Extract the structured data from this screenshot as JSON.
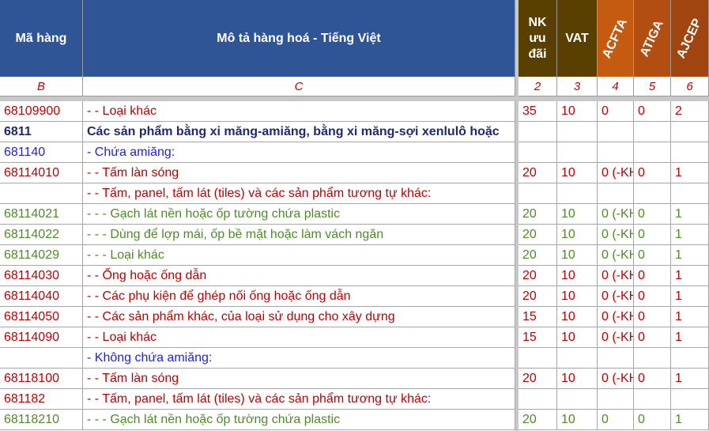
{
  "header": {
    "col_b": "Mã hàng",
    "col_c": "Mô tả hàng hoá - Tiếng Việt",
    "nk": "NK ưu đãi",
    "vat": "VAT",
    "acfta": "ACFTA",
    "atiga": "ATIGA",
    "ajcep": "AJCEP"
  },
  "letters": {
    "b": "B",
    "c": "C",
    "n2": "2",
    "n3": "3",
    "n4": "4",
    "n5": "5",
    "n6": "6"
  },
  "colors": {
    "header_blue": "#2f5597",
    "header_brown": "#5a4000",
    "acfta": "#c55a11",
    "atiga": "#b34e12",
    "ajcep": "#a0450f"
  },
  "rows": [
    {
      "code": "68109900",
      "desc": "- - Loại khác",
      "nk": "35",
      "vat": "10",
      "acfta": "0",
      "atiga": "0",
      "ajcep": "2",
      "style": "red"
    },
    {
      "code": "6811",
      "desc": "Các sản phẩm bằng xi măng-amiăng, bằng xi măng-sợi xenlulô hoặc",
      "nk": "",
      "vat": "",
      "acfta": "",
      "atiga": "",
      "ajcep": "",
      "style": "bold"
    },
    {
      "code": "681140",
      "desc": "- Chứa amiăng:",
      "nk": "",
      "vat": "",
      "acfta": "",
      "atiga": "",
      "ajcep": "",
      "style": "blue"
    },
    {
      "code": "68114010",
      "desc": "- - Tấm làn sóng",
      "nk": "20",
      "vat": "10",
      "acfta": "0 (-KH",
      "atiga": "0",
      "ajcep": "1",
      "style": "red"
    },
    {
      "code": "",
      "desc": "- - Tấm, panel, tấm lát (tiles) và các sản phẩm tương tự khác:",
      "nk": "",
      "vat": "",
      "acfta": "",
      "atiga": "",
      "ajcep": "",
      "style": "red"
    },
    {
      "code": "68114021",
      "desc": "- - - Gạch lát nền hoặc ốp tường chứa plastic",
      "nk": "20",
      "vat": "10",
      "acfta": "0 (-KH",
      "atiga": "0",
      "ajcep": "1",
      "style": "green"
    },
    {
      "code": "68114022",
      "desc": "- - - Dùng để lợp mái, ốp bề mặt hoặc làm vách ngăn",
      "nk": "20",
      "vat": "10",
      "acfta": "0 (-KH",
      "atiga": "0",
      "ajcep": "1",
      "style": "green"
    },
    {
      "code": "68114029",
      "desc": "- - - Loại khác",
      "nk": "20",
      "vat": "10",
      "acfta": "0 (-KH",
      "atiga": "0",
      "ajcep": "1",
      "style": "green"
    },
    {
      "code": "68114030",
      "desc": "- - Ống hoặc ống dẫn",
      "nk": "20",
      "vat": "10",
      "acfta": "0 (-KH",
      "atiga": "0",
      "ajcep": "1",
      "style": "red"
    },
    {
      "code": "68114040",
      "desc": "- - Các phụ kiện để ghép nối ống hoặc ống dẫn",
      "nk": "20",
      "vat": "10",
      "acfta": "0 (-KH",
      "atiga": "0",
      "ajcep": "1",
      "style": "red"
    },
    {
      "code": "68114050",
      "desc": "- - Các sản phẩm khác, của loại sử dụng cho xây dựng",
      "nk": "15",
      "vat": "10",
      "acfta": "0 (-KH",
      "atiga": "0",
      "ajcep": "1",
      "style": "red"
    },
    {
      "code": "68114090",
      "desc": "- - Loại khác",
      "nk": "15",
      "vat": "10",
      "acfta": "0 (-KH",
      "atiga": "0",
      "ajcep": "1",
      "style": "red"
    },
    {
      "code": "",
      "desc": "- Không chứa amiăng:",
      "nk": "",
      "vat": "",
      "acfta": "",
      "atiga": "",
      "ajcep": "",
      "style": "blue"
    },
    {
      "code": "68118100",
      "desc": "- - Tấm làn sóng",
      "nk": "20",
      "vat": "10",
      "acfta": "0 (-KH",
      "atiga": "0",
      "ajcep": "1",
      "style": "red"
    },
    {
      "code": "681182",
      "desc": "- - Tấm, panel, tấm lát (tiles) và các sản phẩm tương tự khác:",
      "nk": "",
      "vat": "",
      "acfta": "",
      "atiga": "",
      "ajcep": "",
      "style": "red"
    },
    {
      "code": "68118210",
      "desc": "- - - Gạch lát nền hoặc ốp tường chứa plastic",
      "nk": "20",
      "vat": "10",
      "acfta": "0",
      "atiga": "0",
      "ajcep": "1",
      "style": "green"
    }
  ]
}
